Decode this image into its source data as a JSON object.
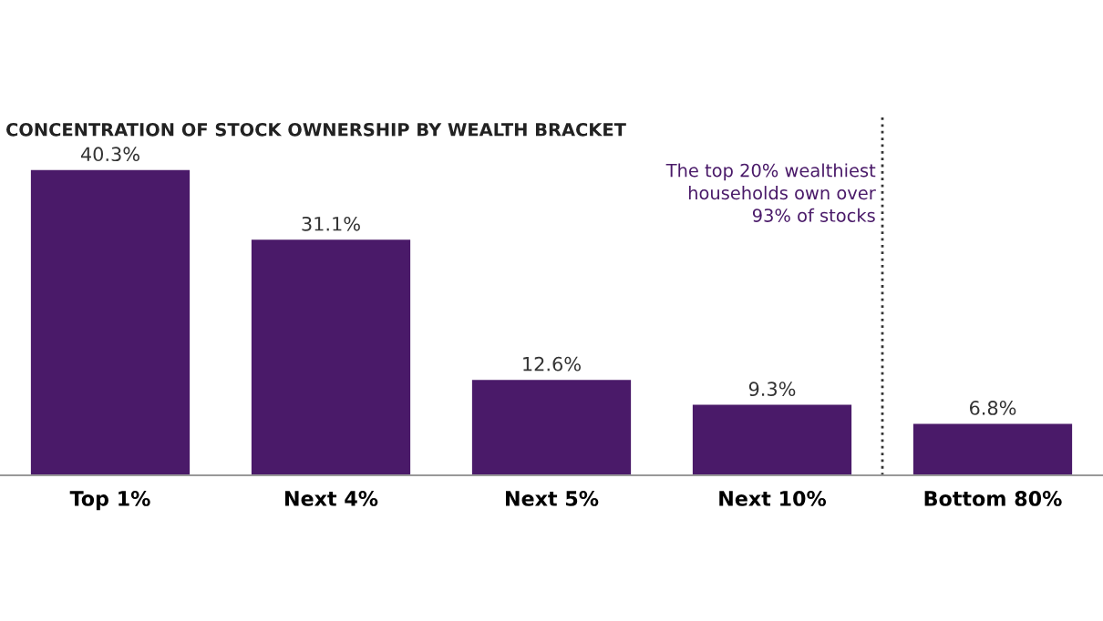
{
  "chart_data": {
    "type": "bar",
    "title": "CONCENTRATION OF STOCK OWNERSHIP BY WEALTH BRACKET",
    "categories": [
      "Top 1%",
      "Next 4%",
      "Next 5%",
      "Next 10%",
      "Bottom 80%"
    ],
    "values": [
      40.3,
      31.1,
      12.6,
      9.3,
      6.8
    ],
    "value_labels": [
      "40.3%",
      "31.1%",
      "12.6%",
      "9.3%",
      "6.8%"
    ],
    "color": "#4a1a69",
    "grid": false,
    "legend": false,
    "annotations": [
      "The top 20% wealthiest\nhouseholds own over\n93% of stocks"
    ]
  }
}
